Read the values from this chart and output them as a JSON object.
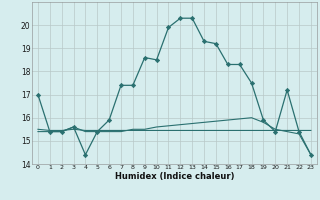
{
  "x": [
    0,
    1,
    2,
    3,
    4,
    5,
    6,
    7,
    8,
    9,
    10,
    11,
    12,
    13,
    14,
    15,
    16,
    17,
    18,
    19,
    20,
    21,
    22,
    23
  ],
  "line1": [
    17.0,
    15.4,
    15.4,
    15.6,
    14.4,
    15.4,
    15.9,
    17.4,
    17.4,
    18.6,
    18.5,
    19.9,
    20.3,
    20.3,
    19.3,
    19.2,
    18.3,
    18.3,
    17.5,
    15.9,
    15.4,
    17.2,
    15.4,
    14.4
  ],
  "line2": [
    15.4,
    15.4,
    15.4,
    15.6,
    15.4,
    15.4,
    15.4,
    15.4,
    15.5,
    15.5,
    15.6,
    15.65,
    15.7,
    15.75,
    15.8,
    15.85,
    15.9,
    15.95,
    16.0,
    15.8,
    15.5,
    15.4,
    15.3,
    14.4
  ],
  "line3": [
    15.5,
    15.45,
    15.45,
    15.5,
    15.45,
    15.45,
    15.45,
    15.45,
    15.45,
    15.45,
    15.45,
    15.45,
    15.45,
    15.45,
    15.45,
    15.45,
    15.45,
    15.45,
    15.45,
    15.45,
    15.45,
    15.45,
    15.45,
    15.45
  ],
  "bgcolor": "#d6edee",
  "line_color": "#2a7070",
  "grid_color": "#b8c8c8",
  "xlabel": "Humidex (Indice chaleur)",
  "ylim": [
    14,
    21
  ],
  "yticks": [
    14,
    15,
    16,
    17,
    18,
    19,
    20
  ],
  "xticks": [
    0,
    1,
    2,
    3,
    4,
    5,
    6,
    7,
    8,
    9,
    10,
    11,
    12,
    13,
    14,
    15,
    16,
    17,
    18,
    19,
    20,
    21,
    22,
    23
  ]
}
